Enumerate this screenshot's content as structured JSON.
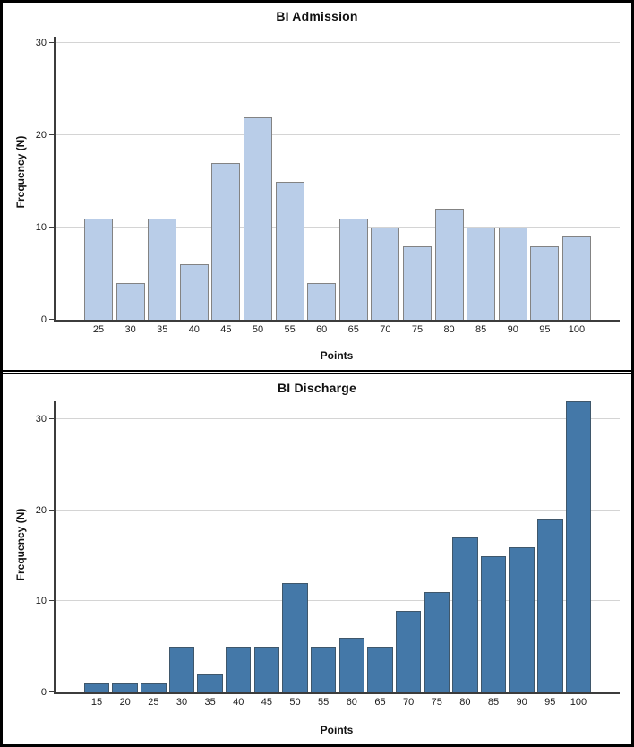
{
  "figure": {
    "background": "#ffffff",
    "border_color": "#000000"
  },
  "chart_data": [
    {
      "type": "bar",
      "title": "BI Admission",
      "xlabel": "Points",
      "ylabel": "Frequency (N)",
      "categories": [
        25,
        30,
        35,
        40,
        45,
        50,
        55,
        60,
        65,
        70,
        75,
        80,
        85,
        90,
        95,
        100
      ],
      "values": [
        11,
        4,
        11,
        6,
        17,
        22,
        15,
        4,
        11,
        10,
        8,
        12,
        10,
        10,
        8,
        9
      ],
      "yticks": [
        0,
        10,
        20,
        30
      ],
      "ylim": [
        0,
        30.7
      ],
      "grid": true,
      "gridline_color": "#d4d4d4",
      "bar_fill": "#b9cde8",
      "bar_border": "#838383"
    },
    {
      "type": "bar",
      "title": "BI Discharge",
      "xlabel": "Points",
      "ylabel": "Frequency (N)",
      "categories": [
        15,
        20,
        25,
        30,
        35,
        40,
        45,
        50,
        55,
        60,
        65,
        70,
        75,
        80,
        85,
        90,
        95,
        100
      ],
      "values": [
        1,
        1,
        1,
        5,
        2,
        5,
        5,
        12,
        5,
        6,
        5,
        9,
        11,
        17,
        15,
        16,
        19,
        32
      ],
      "yticks": [
        0,
        10,
        20,
        30
      ],
      "ylim": [
        0,
        32
      ],
      "grid": true,
      "gridline_color": "#d4d4d4",
      "bar_fill": "#4478a8",
      "bar_border": "#3f576b"
    }
  ]
}
